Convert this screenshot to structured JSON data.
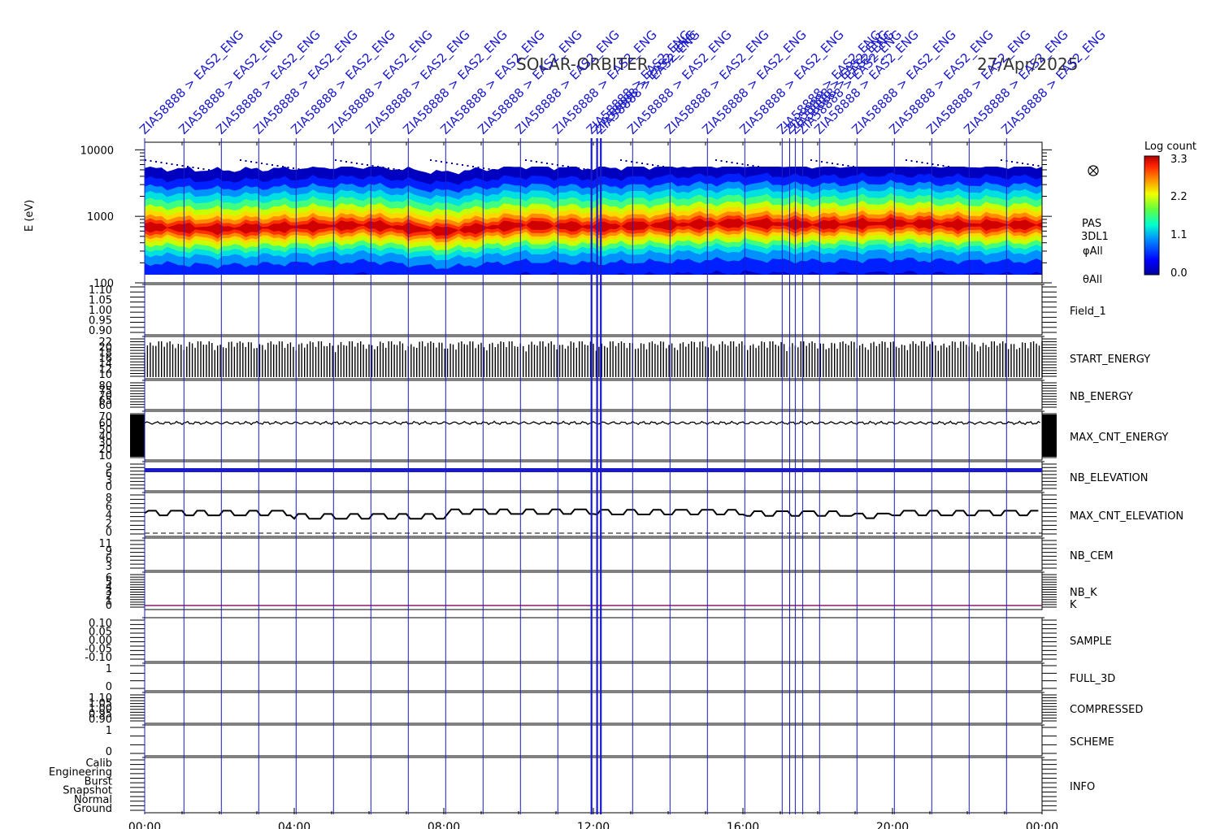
{
  "title": "SOLAR-ORBITER",
  "date": "27/Apr/2025",
  "ylabel_spectrogram": "E (eV)",
  "colorbar": {
    "title": "Log count",
    "ticks": [
      "3.3",
      "2.2",
      "1.1",
      "0.0"
    ],
    "colors": [
      "#0000b0",
      "#0000ff",
      "#0080ff",
      "#00e0ff",
      "#40ff80",
      "#c0ff00",
      "#ffe000",
      "#ff8000",
      "#ff2000",
      "#c00000"
    ]
  },
  "spectrogram_labels": [
    "PAS",
    "3DL1",
    "φAll",
    "θAll"
  ],
  "spectrogram_icon": "crossed-circle-icon",
  "panels": [
    {
      "label": "Field_1",
      "color": "#1a1acc",
      "ticks": [
        "1.10",
        "1.05",
        "1.00",
        "0.95",
        "0.90"
      ]
    },
    {
      "label": "START_ENERGY",
      "color": "#000000",
      "ticks": [
        "22",
        "20",
        "18",
        "16",
        "14",
        "12",
        "10"
      ]
    },
    {
      "label": "NB_ENERGY",
      "color": "#1a1acc",
      "ticks": [
        "80",
        "75",
        "70",
        "65",
        "60"
      ]
    },
    {
      "label": "MAX_CNT_ENERGY",
      "color": "#000000",
      "ticks": [
        "70",
        "60",
        "50",
        "40",
        "30",
        "20",
        "10"
      ]
    },
    {
      "label": "NB_ELEVATION",
      "color": "#1a1acc",
      "ticks": [
        "9",
        "6",
        "3",
        "0"
      ]
    },
    {
      "label": "MAX_CNT_ELEVATION",
      "color": "#000000",
      "ticks": [
        "8",
        "6",
        "4",
        "2",
        "0"
      ]
    },
    {
      "label": "NB_CEM",
      "color": "#1a1acc",
      "ticks": [
        "11",
        "9",
        "6",
        "3"
      ]
    },
    {
      "label": "NB_K",
      "color": "#cc2222",
      "ticks": [
        "6",
        "5",
        "4",
        "3",
        "2",
        "1",
        "0"
      ]
    },
    {
      "label": "K",
      "color": "#1a1acc",
      "ticks": []
    },
    {
      "label": "SAMPLE",
      "color": "#1a1acc",
      "ticks": [
        "0.10",
        "0.05",
        "0.00",
        "-0.05",
        "-0.10"
      ]
    },
    {
      "label": "FULL_3D",
      "color": "#1a1acc",
      "ticks": [
        "1",
        "0"
      ]
    },
    {
      "label": "COMPRESSED",
      "color": "#000000",
      "ticks": [
        "1.10",
        "1.05",
        "1.00",
        "0.95",
        "0.90"
      ]
    },
    {
      "label": "SCHEME",
      "color": "#000000",
      "ticks": [
        "1",
        "0"
      ]
    },
    {
      "label": "INFO",
      "color": "#000000",
      "ticks": [
        "Calib",
        "Engineering",
        "Burst",
        "Snapshot",
        "Normal",
        "Ground"
      ]
    }
  ],
  "marker_label": "ZIA58888 > EAS2_ENG",
  "marker_label_short": "ZIA58888",
  "colors": {
    "marker": "#1a1acc",
    "axis": "#000000"
  },
  "chart_data": {
    "type": "heatmap",
    "xlabel": "",
    "x_ticks": [
      "00:00",
      "04:00",
      "08:00",
      "12:00",
      "16:00",
      "20:00",
      "00:00"
    ],
    "xlim_hours": [
      0,
      24
    ],
    "spectrogram": {
      "ylabel": "E (eV)",
      "yscale": "log",
      "ylim": [
        100,
        13000
      ],
      "y_ticks": [
        "10000",
        "1000",
        "100"
      ],
      "peak_energy_eV_by_hour": [
        [
          0,
          700
        ],
        [
          2,
          650
        ],
        [
          4,
          700
        ],
        [
          6,
          750
        ],
        [
          8,
          600
        ],
        [
          10,
          750
        ],
        [
          12,
          700
        ],
        [
          14,
          750
        ],
        [
          16,
          800
        ],
        [
          18,
          750
        ],
        [
          20,
          800
        ],
        [
          22,
          750
        ],
        [
          24,
          750
        ]
      ]
    },
    "max_cnt_energy_level": 58,
    "marker_times_hours": [
      0,
      1.05,
      2.05,
      3.05,
      4.05,
      5.05,
      6.05,
      7.05,
      8.05,
      9.05,
      10.05,
      11.05,
      11.95,
      12.1,
      12.2,
      13.05,
      14.05,
      15.05,
      16.05,
      17.05,
      17.25,
      17.4,
      17.6,
      18.05,
      19.05,
      20.05,
      21.05,
      22.05,
      23.05
    ]
  }
}
